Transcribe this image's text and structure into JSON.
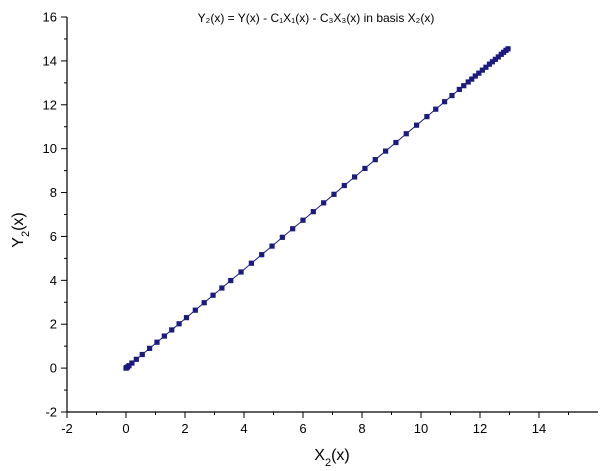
{
  "chart_data": {
    "type": "scatter",
    "title": "Y₂(x) = Y(x) - C₁X₁(x) - C₃X₃(x) in basis X₂(x)",
    "xlabel_main": "X",
    "xlabel_sub": "2",
    "xlabel_suffix": "(x)",
    "ylabel_main": "Y",
    "ylabel_sub": "2",
    "ylabel_suffix": "(x)",
    "xlim": [
      -2,
      16
    ],
    "ylim": [
      -2,
      16
    ],
    "xticks": [
      -2,
      0,
      2,
      4,
      6,
      8,
      10,
      12,
      14
    ],
    "yticks": [
      -2,
      0,
      2,
      4,
      6,
      8,
      10,
      12,
      14,
      16
    ],
    "xtick_labels": [
      "-2",
      "0",
      "2",
      "4",
      "6",
      "8",
      "10",
      "12",
      "14"
    ],
    "ytick_labels": [
      "-2",
      "0",
      "2",
      "4",
      "6",
      "8",
      "10",
      "12",
      "14",
      "16"
    ],
    "series_color": "#1a1a80",
    "grid": false,
    "series": [
      {
        "x": [
          0.0,
          0.02,
          0.05,
          0.1,
          0.2,
          0.35,
          0.55,
          0.8,
          1.05,
          1.3,
          1.55,
          1.8,
          2.05,
          2.35,
          2.65,
          2.95,
          3.25,
          3.55,
          3.9,
          4.25,
          4.6,
          4.95,
          5.3,
          5.65,
          6.0,
          6.35,
          6.7,
          7.05,
          7.4,
          7.75,
          8.1,
          8.45,
          8.8,
          9.15,
          9.5,
          9.85,
          10.2,
          10.5,
          10.8,
          11.05,
          11.3,
          11.45,
          11.6,
          11.72,
          11.84,
          11.96,
          12.08,
          12.2,
          12.32,
          12.42,
          12.52,
          12.62,
          12.72,
          12.8,
          12.88,
          12.95
        ],
        "y": [
          0.0,
          0.02,
          0.05,
          0.11,
          0.23,
          0.4,
          0.62,
          0.9,
          1.18,
          1.46,
          1.74,
          2.02,
          2.3,
          2.64,
          2.98,
          3.32,
          3.65,
          3.99,
          4.38,
          4.78,
          5.17,
          5.56,
          5.96,
          6.35,
          6.74,
          7.13,
          7.53,
          7.92,
          8.32,
          8.71,
          9.1,
          9.5,
          9.89,
          10.28,
          10.68,
          11.07,
          11.46,
          11.8,
          12.14,
          12.42,
          12.7,
          12.87,
          13.04,
          13.17,
          13.31,
          13.44,
          13.58,
          13.71,
          13.85,
          13.96,
          14.07,
          14.18,
          14.3,
          14.39,
          14.48,
          14.55
        ]
      }
    ]
  }
}
